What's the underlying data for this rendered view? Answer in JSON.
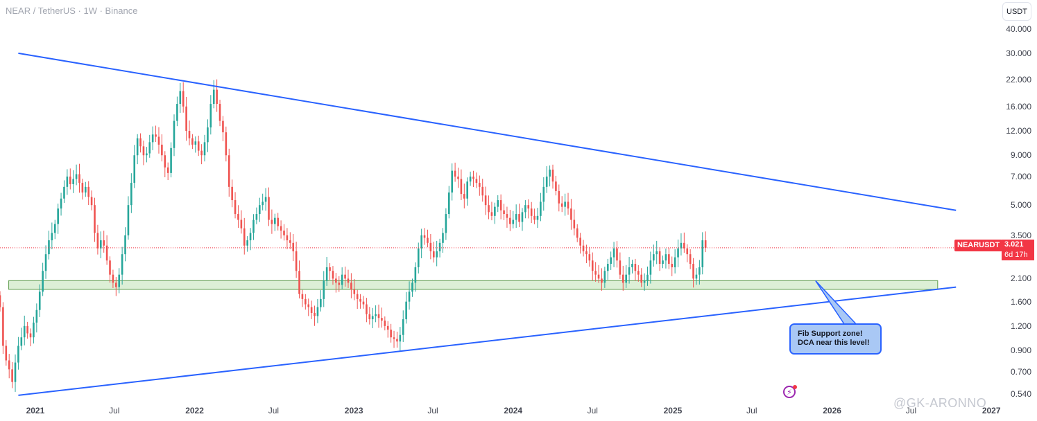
{
  "header": {
    "title": "NEAR / TetherUS · 1W · Binance",
    "currency_button": "USDT"
  },
  "price_tag": {
    "symbol": "NEARUSDT",
    "price": "3.021",
    "countdown": "6d 17h"
  },
  "annotation": {
    "line1": "Fib Support zone!",
    "line2": "DCA near this level!"
  },
  "watermark": "@GK-ARONNO",
  "colors": {
    "up": "#26a69a",
    "down": "#ef5350",
    "trendline": "#2962ff",
    "support_zone_fill": "#dcefd6",
    "support_zone_border": "#5b9a4a",
    "last_price": "#f23645"
  },
  "chart_data": {
    "type": "candlestick",
    "title": "NEAR / TetherUS · 1W · Binance",
    "y_scale": "log",
    "ylim": [
      0.5,
      44
    ],
    "y_ticks": [
      0.54,
      0.7,
      0.9,
      1.2,
      1.6,
      2.1,
      3.5,
      5.0,
      7.0,
      9.0,
      12.0,
      16.0,
      22.0,
      30.0,
      40.0
    ],
    "y_tick_labels": [
      "0.540",
      "0.700",
      "0.900",
      "1.200",
      "1.600",
      "2.100",
      "3.500",
      "5.000",
      "7.000",
      "9.000",
      "12.000",
      "16.000",
      "22.000",
      "30.000",
      "40.000"
    ],
    "x_range": [
      "2020-10-12",
      "2027-01-15"
    ],
    "x_ticks": [
      {
        "date": "2021-01-01",
        "label": "2021",
        "major": true
      },
      {
        "date": "2021-07-01",
        "label": "Jul",
        "major": false
      },
      {
        "date": "2022-01-01",
        "label": "2022",
        "major": true
      },
      {
        "date": "2022-07-01",
        "label": "Jul",
        "major": false
      },
      {
        "date": "2023-01-01",
        "label": "2023",
        "major": true
      },
      {
        "date": "2023-07-01",
        "label": "Jul",
        "major": false
      },
      {
        "date": "2024-01-01",
        "label": "2024",
        "major": true
      },
      {
        "date": "2024-07-01",
        "label": "Jul",
        "major": false
      },
      {
        "date": "2025-01-01",
        "label": "2025",
        "major": true
      },
      {
        "date": "2025-07-01",
        "label": "Jul",
        "major": false
      },
      {
        "date": "2026-01-01",
        "label": "2026",
        "major": true
      },
      {
        "date": "2026-07-01",
        "label": "Jul",
        "major": false
      },
      {
        "date": "2027-01-01",
        "label": "2027",
        "major": true
      }
    ],
    "interval": "1W",
    "start_date": "2020-10-12",
    "closes": [
      1.5,
      0.95,
      0.8,
      0.72,
      0.62,
      0.78,
      0.95,
      1.05,
      1.2,
      1.1,
      1.05,
      1.25,
      1.45,
      1.8,
      2.3,
      2.8,
      3.3,
      3.6,
      4.0,
      4.8,
      5.4,
      6.2,
      7.0,
      6.4,
      6.8,
      7.2,
      6.5,
      5.8,
      6.2,
      5.5,
      5.0,
      3.6,
      3.0,
      3.3,
      3.1,
      2.6,
      2.2,
      2.0,
      1.9,
      2.2,
      2.8,
      3.5,
      5.0,
      6.5,
      9.0,
      11.0,
      10.0,
      9.0,
      9.2,
      10.5,
      11.5,
      11.2,
      10.2,
      9.0,
      7.8,
      7.3,
      9.8,
      13.5,
      16.5,
      19.2,
      16.0,
      12.0,
      11.0,
      10.2,
      10.6,
      9.5,
      9.0,
      10.5,
      12.5,
      16.5,
      19.5,
      16.5,
      13.5,
      11.8,
      9.0,
      6.2,
      5.3,
      4.5,
      4.2,
      3.8,
      3.1,
      3.3,
      3.6,
      4.2,
      4.5,
      5.0,
      5.2,
      5.5,
      4.2,
      4.0,
      4.3,
      3.9,
      3.7,
      3.5,
      3.3,
      3.2,
      2.9,
      2.3,
      1.75,
      1.65,
      1.55,
      1.5,
      1.4,
      1.35,
      1.5,
      1.65,
      2.05,
      2.4,
      2.3,
      2.1,
      2.0,
      1.95,
      2.2,
      2.1,
      2.0,
      1.85,
      1.75,
      1.65,
      1.6,
      1.55,
      1.38,
      1.3,
      1.35,
      1.38,
      1.32,
      1.28,
      1.2,
      1.15,
      1.05,
      1.03,
      1.0,
      1.08,
      1.3,
      1.6,
      1.8,
      2.0,
      2.4,
      3.0,
      3.5,
      3.4,
      3.2,
      2.9,
      2.7,
      2.9,
      3.2,
      3.6,
      4.5,
      5.8,
      7.5,
      7.0,
      6.8,
      5.7,
      5.4,
      6.6,
      7.0,
      6.8,
      6.5,
      6.2,
      5.6,
      5.0,
      4.6,
      4.4,
      4.9,
      5.3,
      4.7,
      4.5,
      4.3,
      4.0,
      4.2,
      4.5,
      4.1,
      4.6,
      5.0,
      4.8,
      4.4,
      4.2,
      4.4,
      5.2,
      6.2,
      7.0,
      7.6,
      6.6,
      5.9,
      5.1,
      4.9,
      5.2,
      4.8,
      4.2,
      3.8,
      3.4,
      3.1,
      2.9,
      2.8,
      2.6,
      2.3,
      2.2,
      2.1,
      2.0,
      2.3,
      2.5,
      2.7,
      3.0,
      2.6,
      2.2,
      2.0,
      2.2,
      2.4,
      2.5,
      2.3,
      2.2,
      2.0,
      2.05,
      2.2,
      2.6,
      2.8,
      2.9,
      2.5,
      2.6,
      2.8,
      2.5,
      2.4,
      2.7,
      3.0,
      3.2,
      3.0,
      2.8,
      2.5,
      2.1,
      2.2,
      2.4,
      3.3,
      3.021
    ],
    "last_price": 3.021,
    "support_zone": {
      "low": 1.85,
      "high": 2.05,
      "from": "2020-11-01",
      "to": "2026-08-31"
    },
    "trendlines": [
      {
        "name": "descending resistance",
        "from": {
          "date": "2020-11-23",
          "value": 30.0
        },
        "to": {
          "date": "2026-10-12",
          "value": 4.7
        }
      },
      {
        "name": "ascending support",
        "from": {
          "date": "2020-11-23",
          "value": 0.53
        },
        "to": {
          "date": "2026-10-12",
          "value": 1.9
        }
      }
    ],
    "callout_arrow": {
      "from_date": "2025-11-24",
      "from_value": 2.05,
      "to_date": "2026-02-23",
      "to_value": 1.2
    }
  }
}
